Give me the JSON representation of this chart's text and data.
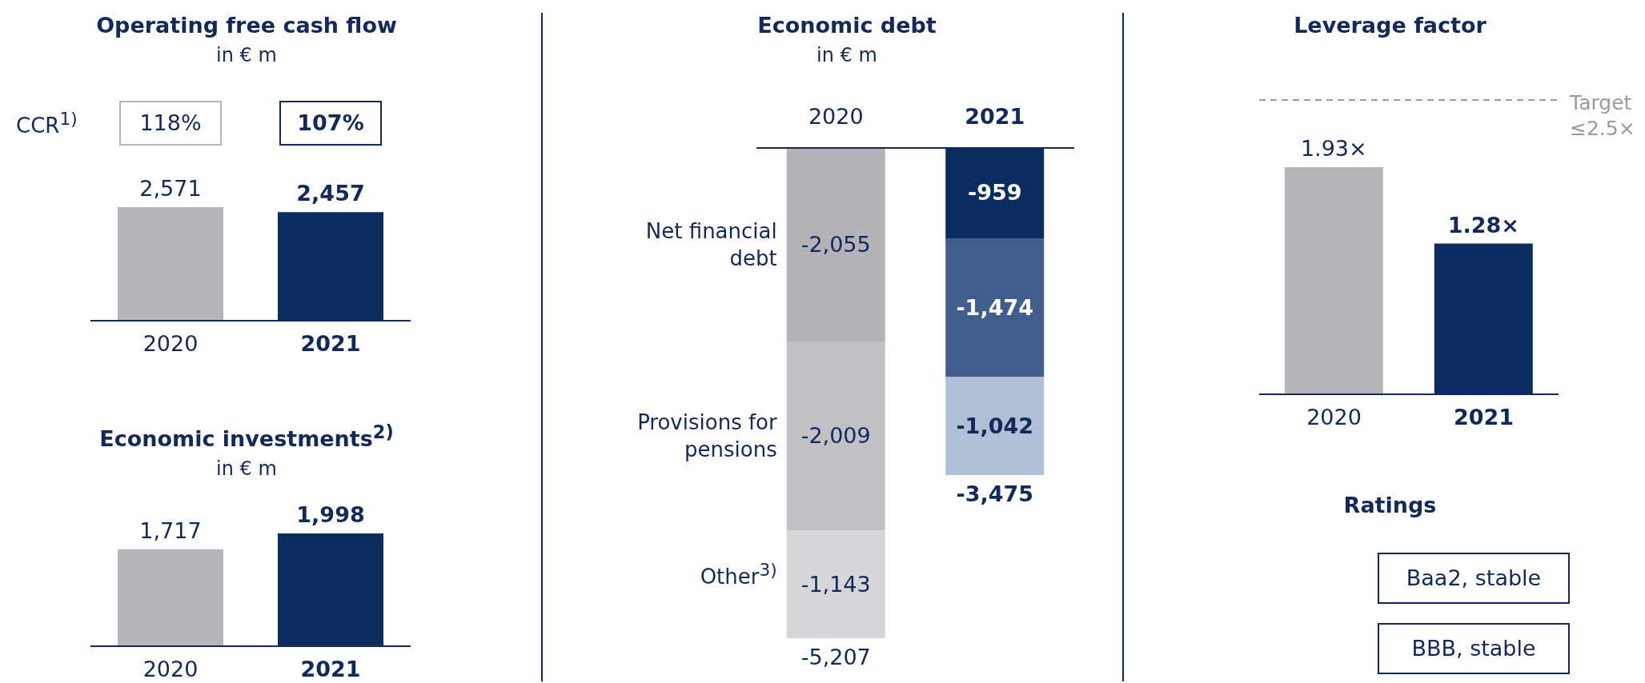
{
  "chart_data": [
    {
      "type": "bar",
      "title": "Operating free cash flow",
      "subtitle": "in € m",
      "categories": [
        "2020",
        "2021"
      ],
      "values": [
        2571,
        2457
      ],
      "value_labels": [
        "2,571",
        "2,457"
      ],
      "colors": [
        "#b6b5ba",
        "#0b2c5f"
      ],
      "annotations": [
        "CCR$^{1)}$",
        "118%",
        "107%"
      ]
    },
    {
      "type": "bar",
      "title": "Economic investments$^{2)}$",
      "subtitle": "in € m",
      "categories": [
        "2020",
        "2021"
      ],
      "values": [
        1717,
        1998
      ],
      "value_labels": [
        "1,717",
        "1,998"
      ],
      "colors": [
        "#b6b5ba",
        "#0b2c5f"
      ]
    },
    {
      "type": "bar",
      "title": "Economic debt",
      "subtitle": "in € m",
      "categories": [
        "2020",
        "2021"
      ],
      "stacked": true,
      "totals": [
        "-5,207",
        "-3,475"
      ],
      "series": [
        {
          "name": "Net financial debt",
          "colors": [
            "#b3b2b7",
            "#0b2c5f"
          ],
          "values": [
            -2055,
            -959
          ],
          "value_labels": [
            "-2,055",
            "-959"
          ]
        },
        {
          "name": "Provisions for pensions",
          "colors": [
            "#c1c0c5",
            "#405d8c"
          ],
          "values": [
            -2009,
            -1474
          ],
          "value_labels": [
            "-2,009",
            "-1,474"
          ]
        },
        {
          "name": "Other$^{3)}$",
          "colors": [
            "#d6d6d8",
            "#aebfd6"
          ],
          "values": [
            -1143,
            -1042
          ],
          "value_labels": [
            "-1,143",
            "-1,042"
          ]
        }
      ]
    },
    {
      "type": "bar",
      "title": "Leverage factor",
      "categories": [
        "2020",
        "2021"
      ],
      "values": [
        1.93,
        1.28
      ],
      "value_labels": [
        "1.93×",
        "1.28×"
      ],
      "colors": [
        "#b6b5ba",
        "#0b2c5f"
      ],
      "ref_lines": [
        {
          "axis": "y",
          "value": 2.5,
          "label": "Target ≤2.5×",
          "line_style": "dashed",
          "color": "#9a9a9a"
        }
      ]
    },
    {
      "type": "other",
      "title": "Ratings",
      "annotations": [
        "Baa2, stable",
        "BBB, stable"
      ]
    }
  ]
}
